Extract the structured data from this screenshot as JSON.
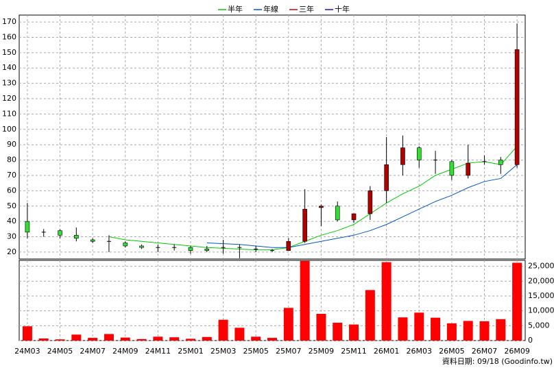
{
  "chart_data": {
    "type": "candlestick",
    "categories": [
      "24M03",
      null,
      "24M05",
      null,
      "24M07",
      null,
      "24M09",
      null,
      "24M11",
      null,
      "25M01",
      null,
      "25M03",
      null,
      "25M05",
      null,
      "25M07",
      null,
      "25M09",
      null,
      "25M11",
      null,
      "26M01",
      null,
      "26M03",
      null,
      "26M05",
      null,
      "26M07",
      null,
      "26M09"
    ],
    "open": [
      40,
      33,
      34,
      31,
      28,
      27,
      26,
      24,
      23,
      23,
      23,
      22,
      23,
      23,
      22,
      21,
      21,
      27,
      49,
      50,
      41,
      45,
      60,
      77,
      88,
      80,
      79,
      70,
      79,
      80,
      77
    ],
    "high": [
      52,
      35,
      35,
      36,
      29,
      31,
      27,
      25,
      25,
      25,
      24,
      24,
      28,
      25,
      24,
      22,
      29,
      61,
      51,
      53,
      45,
      63,
      95,
      96,
      89,
      86,
      80,
      90,
      83,
      82,
      169
    ],
    "low": [
      29,
      30,
      29,
      27,
      26,
      20,
      23,
      22,
      20,
      21,
      19,
      20,
      19,
      16,
      20,
      20,
      21,
      26,
      37,
      40,
      39,
      41,
      52,
      70,
      75,
      71,
      67,
      68,
      77,
      71,
      75
    ],
    "close": [
      33,
      33,
      31,
      29,
      27,
      27,
      24,
      23,
      23,
      23,
      21,
      21,
      23,
      23,
      22,
      21,
      27,
      48,
      50,
      41,
      45,
      60,
      77,
      88,
      80,
      80,
      70,
      78,
      79,
      77,
      152
    ],
    "up_color": "#b00000",
    "down_color": "#33dd33",
    "volume": [
      4800,
      700,
      400,
      2000,
      900,
      2200,
      1000,
      500,
      1300,
      1100,
      600,
      1200,
      7000,
      4300,
      1300,
      900,
      11000,
      26800,
      9000,
      6000,
      5400,
      17000,
      26400,
      7800,
      9400,
      7700,
      5800,
      6600,
      6500,
      7200,
      26200
    ],
    "volume_color": "#ff0000",
    "series": [
      {
        "name": "半年",
        "color": "#00cc00",
        "values": [
          null,
          null,
          null,
          null,
          null,
          30,
          28,
          27,
          26,
          25,
          24,
          23,
          22.5,
          22,
          21.5,
          21.5,
          23,
          27,
          31,
          34,
          38,
          45,
          52,
          58,
          63,
          70,
          74,
          78,
          79,
          77,
          89
        ]
      },
      {
        "name": "年線",
        "color": "#0055cc",
        "values": [
          null,
          null,
          null,
          null,
          null,
          null,
          null,
          null,
          null,
          null,
          null,
          26,
          25.5,
          25,
          24,
          23,
          23,
          25,
          27,
          29,
          31,
          34,
          38,
          43,
          48,
          53,
          57,
          62,
          66,
          68,
          77
        ]
      },
      {
        "name": "三年",
        "color": "#cc0000"
      },
      {
        "name": "十年",
        "color": "#3300cc"
      }
    ],
    "ylim": [
      15.5,
      174.5
    ],
    "yticks": [
      20,
      30,
      40,
      50,
      60,
      70,
      80,
      90,
      100,
      110,
      120,
      130,
      140,
      150,
      160,
      170
    ],
    "y2lim": [
      0,
      27000
    ],
    "y2ticks": [
      0,
      {
        "value": 5000,
        "label": "5,000"
      },
      {
        "value": 10000,
        "label": "10,000"
      },
      {
        "value": 15000,
        "label": "15,000"
      },
      {
        "value": 20000,
        "label": "20,000"
      },
      {
        "value": 25000,
        "label": "25,000"
      }
    ],
    "grid": true,
    "legend": "top",
    "footnote": "資料日期: 09/18 (Goodinfo.tw)"
  }
}
